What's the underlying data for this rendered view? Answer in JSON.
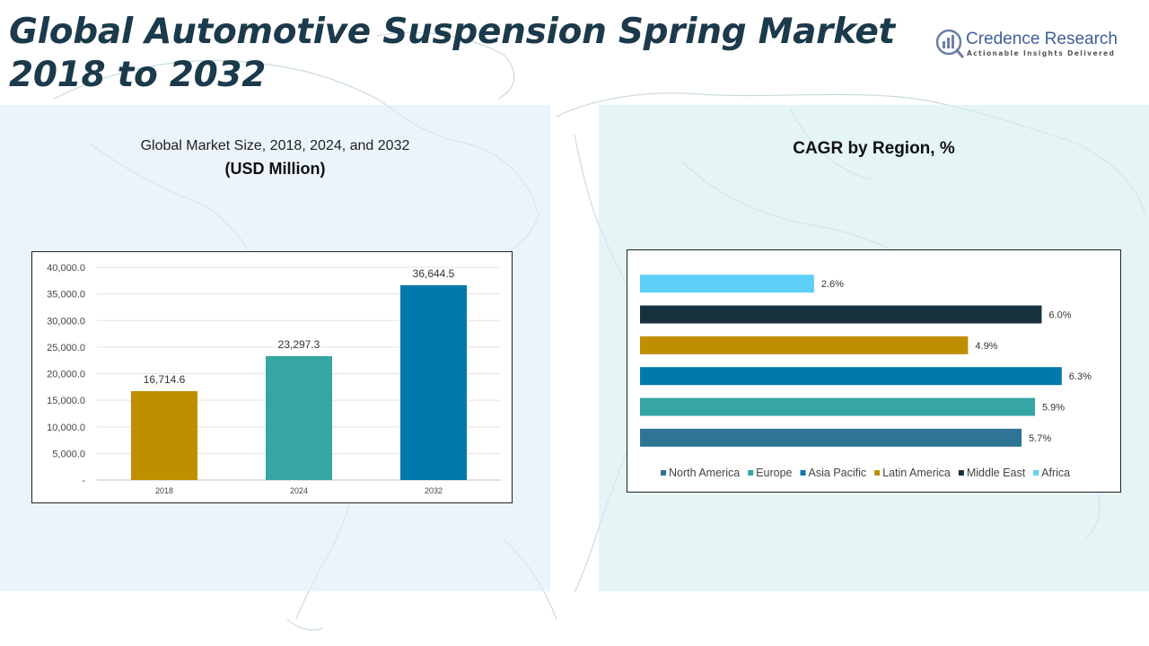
{
  "title": "Global Automotive Suspension Spring Market 2018 to 2032",
  "logo": {
    "name": "Credence Research",
    "tagline": "Actionable Insights Delivered"
  },
  "left_panel": {
    "subtitle": "Global Market Size, 2018, 2024, and 2032",
    "unit": "(USD Million)"
  },
  "right_panel": {
    "subtitle": "CAGR by Region, %"
  },
  "chart_data": [
    {
      "type": "bar",
      "title": "Global Market Size, 2018, 2024, and 2032",
      "ylabel": "",
      "xlabel": "",
      "categories": [
        "2018",
        "2024",
        "2032"
      ],
      "values": [
        16714.6,
        23297.3,
        36644.5
      ],
      "value_labels": [
        "16,714.6",
        "23,297.3",
        "36,644.5"
      ],
      "colors": [
        "#bf8f00",
        "#35a6a3",
        "#0279ab"
      ],
      "ylim": [
        0,
        40000
      ],
      "yticks": [
        0,
        5000,
        10000,
        15000,
        20000,
        25000,
        30000,
        35000,
        40000
      ],
      "ytick_labels": [
        "-",
        "5,000.0",
        "10,000.0",
        "15,000.0",
        "20,000.0",
        "25,000.0",
        "30,000.0",
        "35,000.0",
        "40,000.0"
      ],
      "grid": true,
      "legend": "none"
    },
    {
      "type": "bar",
      "orientation": "horizontal",
      "title": "CAGR by Region, %",
      "categories": [
        "North America",
        "Europe",
        "Asia Pacific",
        "Latin America",
        "Middle East",
        "Africa"
      ],
      "values": [
        5.7,
        5.9,
        6.3,
        4.9,
        6.0,
        2.6
      ],
      "value_labels": [
        "5.7%",
        "5.9%",
        "6.3%",
        "4.9%",
        "6.0%",
        "2.6%"
      ],
      "colors": [
        "#2e7595",
        "#35a6a3",
        "#0279ab",
        "#bf8f00",
        "#17313f",
        "#5dd0f8"
      ],
      "xlim": [
        0,
        7
      ],
      "grid": false,
      "legend": "bottom"
    }
  ]
}
